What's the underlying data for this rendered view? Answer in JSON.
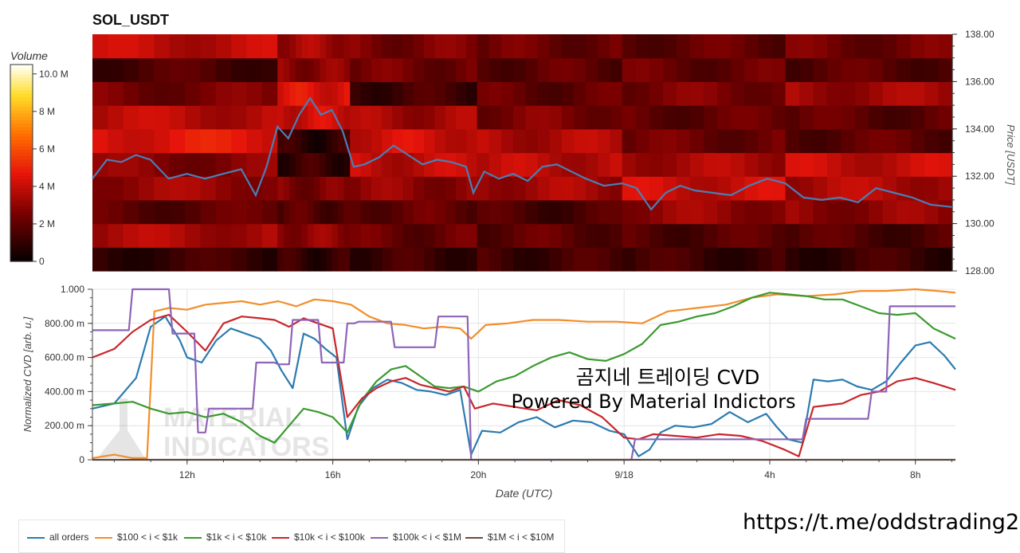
{
  "title": "SOL_USDT",
  "footer_link": "https://t.me/oddstrading2",
  "overlay_text": {
    "line1": "곰지네 트레이딩 CVD",
    "line2": "Powered By Material Indictors"
  },
  "watermark": {
    "line1": "MATERIAL",
    "line2": "INDICATORS"
  },
  "colorbar": {
    "label": "Volume",
    "ticks": [
      "10.0 M",
      "8 M",
      "6 M",
      "4 M",
      "2 M",
      "0"
    ],
    "tick_values": [
      10,
      8,
      6,
      4,
      2,
      0
    ],
    "max": 10.5
  },
  "colors": {
    "all_orders": "#2c7bb0",
    "b100_1k": "#f28e2b",
    "b1k_10k": "#3a9a2e",
    "b10k_100k": "#c8262b",
    "b100k_1m": "#8e63b8",
    "b1m_10m": "#6b4c3b",
    "price_line": "#4a7fb5"
  },
  "chart_data": [
    {
      "type": "heatmap",
      "title": "SOL_USDT",
      "ylabel": "Price [USDT]",
      "ylim": [
        128,
        138
      ],
      "y_ticks": [
        "128.00",
        "130.00",
        "132.00",
        "134.00",
        "136.00",
        "138.00"
      ],
      "y_tick_values": [
        128,
        130,
        132,
        134,
        136,
        138
      ],
      "x_range_hours": [
        9.4,
        33.1
      ],
      "price_bands": [
        128,
        129,
        130,
        131,
        132,
        133,
        134,
        135,
        136,
        137,
        138
      ],
      "segments": [
        {
          "start": 9.4,
          "end": 14.5,
          "volume_by_band": [
            1.2,
            3.5,
            2.0,
            3.2,
            2.8,
            4.6,
            3.8,
            2.5,
            1.6,
            3.9
          ]
        },
        {
          "start": 14.5,
          "end": 16.5,
          "volume_by_band": [
            1.1,
            3.0,
            1.8,
            2.6,
            1.2,
            1.0,
            4.2,
            4.5,
            2.9,
            3.4
          ]
        },
        {
          "start": 16.5,
          "end": 20.0,
          "volume_by_band": [
            1.3,
            2.2,
            2.1,
            3.0,
            3.9,
            4.2,
            3.4,
            1.4,
            2.4,
            2.6
          ]
        },
        {
          "start": 20.0,
          "end": 24.0,
          "volume_by_band": [
            1.4,
            2.0,
            1.6,
            3.4,
            3.8,
            3.6,
            2.6,
            2.1,
            2.0,
            2.3
          ]
        },
        {
          "start": 24.0,
          "end": 28.5,
          "volume_by_band": [
            1.3,
            1.8,
            3.1,
            4.1,
            3.5,
            2.3,
            2.1,
            2.6,
            2.2,
            2.1
          ]
        },
        {
          "start": 28.5,
          "end": 33.1,
          "volume_by_band": [
            1.2,
            1.7,
            3.0,
            3.6,
            4.0,
            2.0,
            2.0,
            3.3,
            1.9,
            2.4
          ]
        }
      ],
      "price": {
        "x": [
          9.4,
          9.8,
          10.2,
          10.6,
          11.0,
          11.5,
          12.0,
          12.5,
          13.0,
          13.5,
          13.9,
          14.2,
          14.5,
          14.8,
          15.1,
          15.4,
          15.7,
          16.0,
          16.3,
          16.6,
          16.9,
          17.3,
          17.7,
          18.1,
          18.5,
          18.9,
          19.3,
          19.7,
          19.9,
          20.2,
          20.6,
          21.0,
          21.4,
          21.8,
          22.2,
          22.6,
          23.0,
          23.5,
          24.0,
          24.4,
          24.8,
          25.2,
          25.6,
          26.0,
          26.5,
          27.0,
          27.5,
          28.0,
          28.5,
          29.0,
          29.5,
          30.0,
          30.5,
          31.0,
          31.5,
          32.0,
          32.5,
          33.1
        ],
        "y": [
          131.9,
          132.7,
          132.6,
          132.9,
          132.7,
          131.9,
          132.1,
          131.9,
          132.1,
          132.3,
          131.2,
          132.4,
          134.1,
          133.6,
          134.6,
          135.3,
          134.6,
          134.8,
          133.9,
          132.4,
          132.5,
          132.8,
          133.3,
          132.9,
          132.5,
          132.7,
          132.6,
          132.4,
          131.3,
          132.2,
          131.9,
          132.1,
          131.8,
          132.4,
          132.5,
          132.2,
          131.9,
          131.6,
          131.7,
          131.5,
          130.6,
          131.3,
          131.6,
          131.4,
          131.3,
          131.2,
          131.6,
          131.9,
          131.7,
          131.1,
          131.0,
          131.1,
          130.9,
          131.5,
          131.3,
          131.1,
          130.8,
          130.7
        ]
      }
    },
    {
      "type": "line",
      "xlabel": "Date (UTC)",
      "ylabel": "Normalized CVD [arb. u.]",
      "ylim": [
        0,
        1
      ],
      "x_range_hours": [
        9.4,
        33.1
      ],
      "y_ticks": [
        "0",
        "200.00 m",
        "400.00 m",
        "600.00 m",
        "800.00 m",
        "1.000"
      ],
      "y_tick_values": [
        0,
        0.2,
        0.4,
        0.6,
        0.8,
        1.0
      ],
      "x_ticks": [
        "12h",
        "16h",
        "20h",
        "9/18",
        "4h",
        "8h"
      ],
      "x_tick_values": [
        12,
        16,
        20,
        24,
        28,
        32
      ],
      "series": [
        {
          "name": "all orders",
          "color_key": "all_orders",
          "x": [
            9.4,
            10.0,
            10.6,
            11.0,
            11.4,
            11.8,
            12.0,
            12.4,
            12.8,
            13.2,
            13.6,
            14.0,
            14.3,
            14.6,
            14.9,
            15.2,
            15.5,
            15.8,
            16.1,
            16.4,
            16.7,
            17.1,
            17.5,
            17.9,
            18.3,
            18.7,
            19.1,
            19.5,
            19.8,
            20.1,
            20.6,
            21.1,
            21.6,
            22.1,
            22.6,
            23.1,
            23.6,
            24.0,
            24.4,
            24.7,
            25.0,
            25.4,
            25.9,
            26.4,
            26.9,
            27.4,
            27.9,
            28.2,
            28.5,
            28.9,
            29.2,
            29.6,
            30.0,
            30.4,
            30.8,
            31.2,
            31.6,
            32.0,
            32.4,
            32.8,
            33.1
          ],
          "y": [
            0.3,
            0.33,
            0.48,
            0.78,
            0.84,
            0.7,
            0.6,
            0.57,
            0.7,
            0.77,
            0.74,
            0.71,
            0.64,
            0.52,
            0.42,
            0.74,
            0.71,
            0.65,
            0.6,
            0.12,
            0.31,
            0.42,
            0.47,
            0.45,
            0.41,
            0.4,
            0.38,
            0.41,
            0.03,
            0.17,
            0.16,
            0.22,
            0.25,
            0.19,
            0.23,
            0.22,
            0.17,
            0.15,
            0.02,
            0.06,
            0.16,
            0.2,
            0.19,
            0.21,
            0.28,
            0.22,
            0.27,
            0.19,
            0.12,
            0.1,
            0.47,
            0.46,
            0.47,
            0.43,
            0.41,
            0.46,
            0.57,
            0.67,
            0.69,
            0.61,
            0.53
          ]
        },
        {
          "name": "$100 < i < $1k",
          "color_key": "b100_1k",
          "x": [
            9.4,
            10.0,
            10.5,
            10.9,
            11.1,
            11.5,
            12.0,
            12.5,
            13.0,
            13.5,
            14.0,
            14.5,
            15.0,
            15.5,
            16.0,
            16.5,
            17.0,
            17.5,
            18.0,
            18.5,
            19.0,
            19.5,
            19.8,
            20.2,
            20.8,
            21.5,
            22.2,
            23.0,
            23.8,
            24.5,
            25.2,
            26.0,
            26.8,
            27.5,
            28.2,
            29.0,
            29.8,
            30.5,
            31.2,
            32.0,
            32.6,
            33.1
          ],
          "y": [
            0.01,
            0.03,
            0.01,
            0.01,
            0.87,
            0.89,
            0.88,
            0.91,
            0.92,
            0.93,
            0.91,
            0.93,
            0.9,
            0.94,
            0.93,
            0.91,
            0.84,
            0.8,
            0.79,
            0.77,
            0.78,
            0.77,
            0.71,
            0.79,
            0.8,
            0.82,
            0.82,
            0.81,
            0.81,
            0.8,
            0.87,
            0.89,
            0.91,
            0.95,
            0.97,
            0.96,
            0.97,
            0.99,
            0.99,
            1.0,
            0.99,
            0.98
          ]
        },
        {
          "name": "$1k < i < $10k",
          "color_key": "b1k_10k",
          "x": [
            9.4,
            10.0,
            10.5,
            11.0,
            11.5,
            12.0,
            12.5,
            13.0,
            13.5,
            14.0,
            14.4,
            14.8,
            15.2,
            15.6,
            16.0,
            16.4,
            16.8,
            17.2,
            17.6,
            18.0,
            18.4,
            18.8,
            19.2,
            19.6,
            20.0,
            20.5,
            21.0,
            21.5,
            22.0,
            22.5,
            23.0,
            23.5,
            24.0,
            24.5,
            25.0,
            25.5,
            26.0,
            26.5,
            27.0,
            27.5,
            28.0,
            28.5,
            29.0,
            29.5,
            30.0,
            30.5,
            31.0,
            31.5,
            32.0,
            32.5,
            33.1
          ],
          "y": [
            0.32,
            0.33,
            0.34,
            0.3,
            0.27,
            0.28,
            0.25,
            0.27,
            0.22,
            0.14,
            0.1,
            0.2,
            0.3,
            0.28,
            0.25,
            0.16,
            0.35,
            0.46,
            0.53,
            0.55,
            0.49,
            0.43,
            0.42,
            0.43,
            0.4,
            0.46,
            0.49,
            0.55,
            0.6,
            0.63,
            0.59,
            0.58,
            0.62,
            0.68,
            0.79,
            0.81,
            0.84,
            0.86,
            0.9,
            0.95,
            0.98,
            0.97,
            0.96,
            0.94,
            0.94,
            0.9,
            0.86,
            0.85,
            0.86,
            0.77,
            0.71
          ]
        },
        {
          "name": "$10k < i < $100k",
          "color_key": "b10k_100k",
          "x": [
            9.4,
            10.0,
            10.5,
            11.0,
            11.5,
            12.0,
            12.5,
            13.0,
            13.5,
            14.0,
            14.4,
            14.8,
            15.2,
            15.6,
            16.0,
            16.4,
            16.8,
            17.2,
            17.6,
            18.0,
            18.4,
            18.8,
            19.2,
            19.6,
            19.9,
            20.4,
            21.0,
            21.6,
            22.2,
            22.8,
            23.4,
            24.0,
            24.4,
            24.8,
            25.4,
            26.0,
            26.6,
            27.2,
            27.8,
            28.4,
            28.8,
            29.2,
            29.6,
            30.0,
            30.5,
            31.0,
            31.5,
            32.0,
            32.5,
            33.1
          ],
          "y": [
            0.6,
            0.65,
            0.75,
            0.82,
            0.85,
            0.75,
            0.64,
            0.8,
            0.84,
            0.83,
            0.82,
            0.78,
            0.83,
            0.8,
            0.77,
            0.25,
            0.36,
            0.42,
            0.46,
            0.48,
            0.44,
            0.42,
            0.4,
            0.43,
            0.3,
            0.33,
            0.31,
            0.29,
            0.35,
            0.32,
            0.25,
            0.13,
            0.12,
            0.15,
            0.14,
            0.13,
            0.15,
            0.14,
            0.11,
            0.06,
            0.02,
            0.31,
            0.32,
            0.33,
            0.38,
            0.4,
            0.46,
            0.48,
            0.45,
            0.41
          ]
        },
        {
          "name": "$100k < i < $1M",
          "color_key": "b100k_1m",
          "x": [
            9.4,
            10.4,
            10.5,
            11.5,
            11.6,
            12.2,
            12.3,
            12.5,
            12.6,
            13.8,
            13.9,
            14.4,
            14.5,
            14.8,
            14.9,
            15.6,
            15.7,
            16.3,
            16.4,
            16.6,
            16.7,
            17.6,
            17.7,
            18.8,
            18.9,
            19.7,
            19.8,
            20.8,
            20.9,
            22.6,
            22.7,
            24.2,
            24.3,
            25.6,
            25.7,
            27.4,
            27.5,
            28.2,
            28.3,
            28.9,
            29.0,
            30.7,
            30.8,
            31.2,
            31.3,
            32.0,
            32.1,
            33.1
          ],
          "y": [
            0.76,
            0.76,
            1.0,
            1.0,
            0.74,
            0.74,
            0.16,
            0.16,
            0.3,
            0.3,
            0.57,
            0.57,
            0.56,
            0.56,
            0.82,
            0.82,
            0.57,
            0.57,
            0.8,
            0.8,
            0.81,
            0.81,
            0.66,
            0.66,
            0.84,
            0.84,
            0.0,
            0.0,
            0.0,
            0.0,
            0.0,
            0.0,
            0.12,
            0.12,
            0.12,
            0.12,
            0.12,
            0.12,
            0.12,
            0.12,
            0.24,
            0.24,
            0.4,
            0.4,
            0.9,
            0.9,
            0.9,
            0.9
          ]
        },
        {
          "name": "$1M < i < $10M",
          "color_key": "b1m_10m",
          "x": [
            9.4,
            33.1
          ],
          "y": [
            0.0,
            0.0
          ]
        }
      ]
    }
  ]
}
